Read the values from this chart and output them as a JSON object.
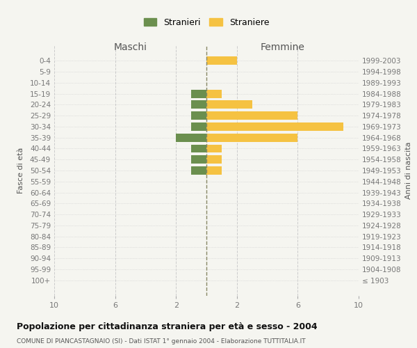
{
  "age_groups": [
    "0-4",
    "5-9",
    "10-14",
    "15-19",
    "20-24",
    "25-29",
    "30-34",
    "35-39",
    "40-44",
    "45-49",
    "50-54",
    "55-59",
    "60-64",
    "65-69",
    "70-74",
    "75-79",
    "80-84",
    "85-89",
    "90-94",
    "95-99",
    "100+"
  ],
  "birth_years": [
    "1999-2003",
    "1994-1998",
    "1989-1993",
    "1984-1988",
    "1979-1983",
    "1974-1978",
    "1969-1973",
    "1964-1968",
    "1959-1963",
    "1954-1958",
    "1949-1953",
    "1944-1948",
    "1939-1943",
    "1934-1938",
    "1929-1933",
    "1924-1928",
    "1919-1923",
    "1914-1918",
    "1909-1913",
    "1904-1908",
    "≤ 1903"
  ],
  "maschi": [
    0,
    0,
    0,
    1,
    1,
    1,
    1,
    2,
    1,
    1,
    1,
    0,
    0,
    0,
    0,
    0,
    0,
    0,
    0,
    0,
    0
  ],
  "femmine": [
    2,
    0,
    0,
    1,
    3,
    6,
    9,
    6,
    1,
    1,
    1,
    0,
    0,
    0,
    0,
    0,
    0,
    0,
    0,
    0,
    0
  ],
  "color_maschi": "#6b8f4e",
  "color_femmine": "#f5c242",
  "xlabel_left": "Maschi",
  "xlabel_right": "Femmine",
  "ylabel_left": "Fasce di età",
  "ylabel_right": "Anni di nascita",
  "title": "Popolazione per cittadinanza straniera per età e sesso - 2004",
  "subtitle": "COMUNE DI PIANCASTAGNAIO (SI) - Dati ISTAT 1° gennaio 2004 - Elaborazione TUTTITALIA.IT",
  "legend_maschi": "Stranieri",
  "legend_femmine": "Straniere",
  "xlim": 10,
  "bg_color": "#f5f5f0",
  "grid_color": "#cccccc",
  "bar_height": 0.75
}
